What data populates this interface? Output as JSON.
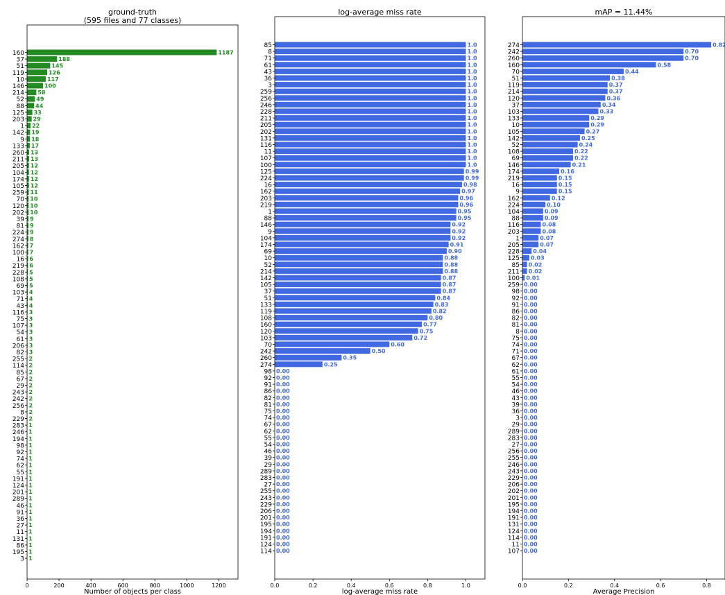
{
  "chart_data": [
    {
      "type": "bar",
      "orientation": "horizontal",
      "title": "ground-truth\n(595 files and 77 classes)",
      "xlabel": "Number of objects per class",
      "ylabel": "",
      "xlim": [
        0,
        1320
      ],
      "xticks": [
        0,
        200,
        400,
        600,
        800,
        1000,
        1200
      ],
      "grid": false,
      "color": "#228b22",
      "categories": [
        "160",
        "37",
        "51",
        "119",
        "10",
        "146",
        "214",
        "52",
        "88",
        "125",
        "203",
        "1",
        "142",
        "9",
        "133",
        "260",
        "211",
        "205",
        "104",
        "174",
        "105",
        "259",
        "70",
        "120",
        "202",
        "39",
        "81",
        "224",
        "274",
        "162",
        "100",
        "16",
        "219",
        "228",
        "108",
        "69",
        "103",
        "71",
        "43",
        "116",
        "75",
        "107",
        "54",
        "61",
        "206",
        "82",
        "255",
        "114",
        "85",
        "67",
        "29",
        "243",
        "242",
        "256",
        "8",
        "229",
        "283",
        "246",
        "194",
        "98",
        "92",
        "74",
        "62",
        "55",
        "191",
        "124",
        "201",
        "289",
        "46",
        "91",
        "36",
        "27",
        "11",
        "131",
        "86",
        "195",
        "3"
      ],
      "values": [
        1187,
        188,
        145,
        126,
        117,
        100,
        58,
        49,
        44,
        33,
        29,
        22,
        19,
        18,
        17,
        13,
        13,
        12,
        12,
        12,
        12,
        11,
        10,
        10,
        10,
        9,
        9,
        9,
        8,
        7,
        7,
        6,
        6,
        5,
        5,
        5,
        4,
        4,
        4,
        3,
        3,
        3,
        3,
        3,
        3,
        3,
        2,
        2,
        2,
        2,
        2,
        2,
        2,
        2,
        2,
        2,
        1,
        1,
        1,
        1,
        1,
        1,
        1,
        1,
        1,
        1,
        1,
        1,
        1,
        1,
        1,
        1,
        1,
        1,
        1,
        1,
        1
      ],
      "labels": [
        "1187",
        "188",
        "145",
        "126",
        "117",
        "100",
        "58",
        "49",
        "44",
        "33",
        "29",
        "22",
        "19",
        "18",
        "17",
        "13",
        "13",
        "12",
        "12",
        "12",
        "12",
        "11",
        "10",
        "10",
        "10",
        "9",
        "9",
        "9",
        "8",
        "7",
        "7",
        "6",
        "6",
        "5",
        "5",
        "5",
        "4",
        "4",
        "4",
        "3",
        "3",
        "3",
        "3",
        "3",
        "3",
        "3",
        "2",
        "2",
        "2",
        "2",
        "2",
        "2",
        "2",
        "2",
        "2",
        "2",
        "1",
        "1",
        "1",
        "1",
        "1",
        "1",
        "1",
        "1",
        "1",
        "1",
        "1",
        "1",
        "1",
        "1",
        "1",
        "1",
        "1",
        "1",
        "1",
        "1",
        "1"
      ]
    },
    {
      "type": "bar",
      "orientation": "horizontal",
      "title": "log-average miss rate",
      "xlabel": "log-average miss rate",
      "ylabel": "",
      "xlim": [
        0,
        1.1
      ],
      "xticks": [
        0.0,
        0.2,
        0.4,
        0.6,
        0.8,
        1.0
      ],
      "grid": false,
      "color": "#4169e1",
      "categories": [
        "85",
        "8",
        "71",
        "61",
        "43",
        "36",
        "3",
        "259",
        "256",
        "246",
        "228",
        "211",
        "205",
        "202",
        "131",
        "116",
        "11",
        "107",
        "100",
        "125",
        "224",
        "16",
        "162",
        "203",
        "219",
        "1",
        "88",
        "146",
        "9",
        "104",
        "174",
        "69",
        "10",
        "52",
        "214",
        "142",
        "105",
        "37",
        "51",
        "133",
        "119",
        "108",
        "160",
        "120",
        "103",
        "70",
        "242",
        "260",
        "274",
        "98",
        "92",
        "91",
        "86",
        "82",
        "81",
        "75",
        "74",
        "67",
        "62",
        "55",
        "54",
        "46",
        "39",
        "29",
        "289",
        "283",
        "27",
        "255",
        "243",
        "229",
        "206",
        "201",
        "195",
        "194",
        "191",
        "124",
        "114"
      ],
      "values": [
        1.0,
        1.0,
        1.0,
        1.0,
        1.0,
        1.0,
        1.0,
        1.0,
        1.0,
        1.0,
        1.0,
        1.0,
        1.0,
        1.0,
        1.0,
        1.0,
        1.0,
        1.0,
        1.0,
        0.99,
        0.99,
        0.98,
        0.97,
        0.96,
        0.96,
        0.95,
        0.95,
        0.92,
        0.92,
        0.92,
        0.91,
        0.9,
        0.88,
        0.88,
        0.88,
        0.87,
        0.87,
        0.87,
        0.84,
        0.83,
        0.82,
        0.8,
        0.77,
        0.75,
        0.72,
        0.6,
        0.5,
        0.35,
        0.25,
        0,
        0,
        0,
        0,
        0,
        0,
        0,
        0,
        0,
        0,
        0,
        0,
        0,
        0,
        0,
        0,
        0,
        0,
        0,
        0,
        0,
        0,
        0,
        0,
        0,
        0,
        0,
        0
      ],
      "labels": [
        "1.0",
        "1.0",
        "1.0",
        "1.0",
        "1.0",
        "1.0",
        "1.0",
        "1.0",
        "1.0",
        "1.0",
        "1.0",
        "1.0",
        "1.0",
        "1.0",
        "1.0",
        "1.0",
        "1.0",
        "1.0",
        "1.0",
        "0.99",
        "0.99",
        "0.98",
        "0.97",
        "0.96",
        "0.96",
        "0.95",
        "0.95",
        "0.92",
        "0.92",
        "0.92",
        "0.91",
        "0.90",
        "0.88",
        "0.88",
        "0.88",
        "0.87",
        "0.87",
        "0.87",
        "0.84",
        "0.83",
        "0.82",
        "0.80",
        "0.77",
        "0.75",
        "0.72",
        "0.60",
        "0.50",
        "0.35",
        "0.25",
        "0.00",
        "0.00",
        "0.00",
        "0.00",
        "0.00",
        "0.00",
        "0.00",
        "0.00",
        "0.00",
        "0.00",
        "0.00",
        "0.00",
        "0.00",
        "0.00",
        "0.00",
        "0.00",
        "0.00",
        "0.00",
        "0.00",
        "0.00",
        "0.00",
        "0.00",
        "0.00",
        "0.00",
        "0.00",
        "0.00",
        "0.00",
        "0.00"
      ]
    },
    {
      "type": "bar",
      "orientation": "horizontal",
      "title": "mAP = 11.44%",
      "xlabel": "Average Precision",
      "ylabel": "",
      "xlim": [
        0,
        0.88
      ],
      "xticks": [
        0.0,
        0.2,
        0.4,
        0.6,
        0.8
      ],
      "grid": false,
      "color": "#4169e1",
      "categories": [
        "274",
        "242",
        "260",
        "160",
        "70",
        "51",
        "119",
        "214",
        "120",
        "37",
        "103",
        "133",
        "10",
        "105",
        "142",
        "52",
        "108",
        "69",
        "146",
        "174",
        "219",
        "16",
        "9",
        "162",
        "224",
        "104",
        "88",
        "116",
        "203",
        "1",
        "205",
        "228",
        "125",
        "85",
        "211",
        "100",
        "259",
        "98",
        "92",
        "91",
        "86",
        "82",
        "81",
        "8",
        "75",
        "74",
        "71",
        "67",
        "62",
        "61",
        "55",
        "54",
        "46",
        "43",
        "39",
        "36",
        "3",
        "29",
        "289",
        "283",
        "27",
        "256",
        "255",
        "246",
        "243",
        "229",
        "206",
        "202",
        "201",
        "195",
        "194",
        "191",
        "131",
        "124",
        "114",
        "11",
        "107"
      ],
      "values": [
        0.82,
        0.7,
        0.7,
        0.58,
        0.44,
        0.38,
        0.37,
        0.37,
        0.36,
        0.34,
        0.33,
        0.29,
        0.29,
        0.27,
        0.25,
        0.24,
        0.22,
        0.22,
        0.21,
        0.16,
        0.15,
        0.15,
        0.15,
        0.12,
        0.1,
        0.09,
        0.09,
        0.08,
        0.08,
        0.07,
        0.07,
        0.04,
        0.03,
        0.02,
        0.02,
        0.01,
        0,
        0,
        0,
        0,
        0,
        0,
        0,
        0,
        0,
        0,
        0,
        0,
        0,
        0,
        0,
        0,
        0,
        0,
        0,
        0,
        0,
        0,
        0,
        0,
        0,
        0,
        0,
        0,
        0,
        0,
        0,
        0,
        0,
        0,
        0,
        0,
        0,
        0,
        0,
        0,
        0
      ],
      "labels": [
        "0.82",
        "0.70",
        "0.70",
        "0.58",
        "0.44",
        "0.38",
        "0.37",
        "0.37",
        "0.36",
        "0.34",
        "0.33",
        "0.29",
        "0.29",
        "0.27",
        "0.25",
        "0.24",
        "0.22",
        "0.22",
        "0.21",
        "0.16",
        "0.15",
        "0.15",
        "0.15",
        "0.12",
        "0.10",
        "0.09",
        "0.09",
        "0.08",
        "0.08",
        "0.07",
        "0.07",
        "0.04",
        "0.03",
        "0.02",
        "0.02",
        "0.01",
        "0.00",
        "0.00",
        "0.00",
        "0.00",
        "0.00",
        "0.00",
        "0.00",
        "0.00",
        "0.00",
        "0.00",
        "0.00",
        "0.00",
        "0.00",
        "0.00",
        "0.00",
        "0.00",
        "0.00",
        "0.00",
        "0.00",
        "0.00",
        "0.00",
        "0.00",
        "0.00",
        "0.00",
        "0.00",
        "0.00",
        "0.00",
        "0.00",
        "0.00",
        "0.00",
        "0.00",
        "0.00",
        "0.00",
        "0.00",
        "0.00",
        "0.00",
        "0.00",
        "0.00",
        "0.00",
        "0.00",
        "0.00"
      ]
    }
  ]
}
